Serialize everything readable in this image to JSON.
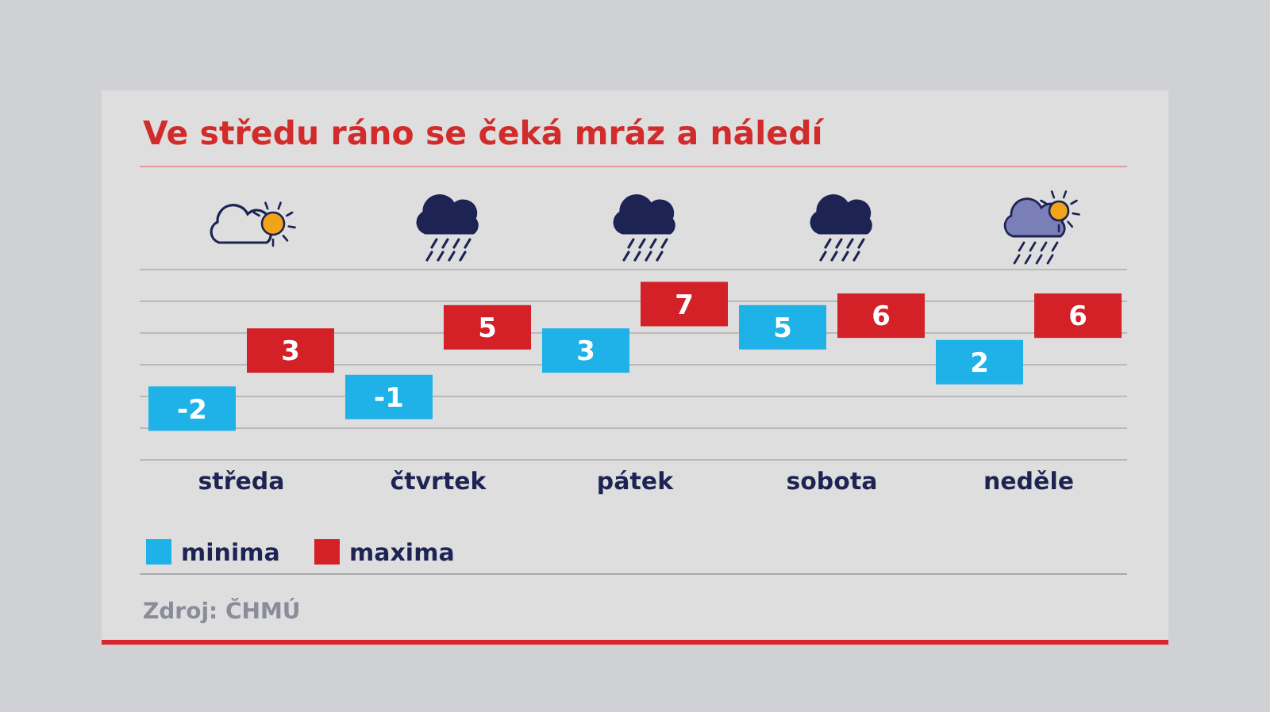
{
  "chart_data": {
    "type": "other",
    "title": "Ve středu ráno se čeká mráz a náledí",
    "categories": [
      "středa",
      "čtvrtek",
      "pátek",
      "sobota",
      "neděle"
    ],
    "series": [
      {
        "name": "minima",
        "color": "#1fb2e8",
        "values": [
          -2,
          -1,
          3,
          5,
          2
        ]
      },
      {
        "name": "maxima",
        "color": "#d42027",
        "values": [
          3,
          5,
          7,
          6,
          6
        ]
      }
    ],
    "data_labels": true,
    "legend": "bottom",
    "annotations": [
      "Zdroj: ČHMÚ"
    ]
  }
}
